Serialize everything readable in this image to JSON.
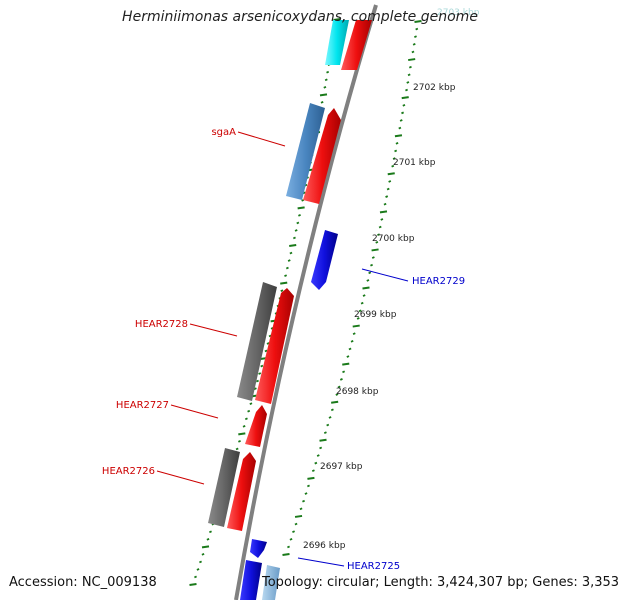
{
  "title": "Herminiimonas arsenicoxydans, complete genome",
  "accession": "Accession: NC_009138",
  "topology": "Topology: circular; Length: 3,424,307 bp; Genes: 3,353",
  "colors": {
    "backbone": "#808080",
    "tick": "#1a7a1a",
    "forward_gene": "#ee1111",
    "reverse_gene": "#1010dd",
    "cds_gray": "#666666",
    "steelblue": "#4a86c0",
    "cyan": "#00e5ee",
    "label_red": "#cc0000",
    "label_blue": "#0000cc"
  },
  "scale_labels": [
    "2703 kbp",
    "2702 kbp",
    "2701 kbp",
    "2700 kbp",
    "2699 kbp",
    "2698 kbp",
    "2697 kbp",
    "2696 kbp"
  ],
  "gene_labels": [
    {
      "text": "sgaA",
      "strand": "forward"
    },
    {
      "text": "HEAR2729",
      "strand": "reverse"
    },
    {
      "text": "HEAR2728",
      "strand": "forward"
    },
    {
      "text": "HEAR2727",
      "strand": "forward"
    },
    {
      "text": "HEAR2726",
      "strand": "forward"
    },
    {
      "text": "HEAR2725",
      "strand": "reverse"
    }
  ]
}
